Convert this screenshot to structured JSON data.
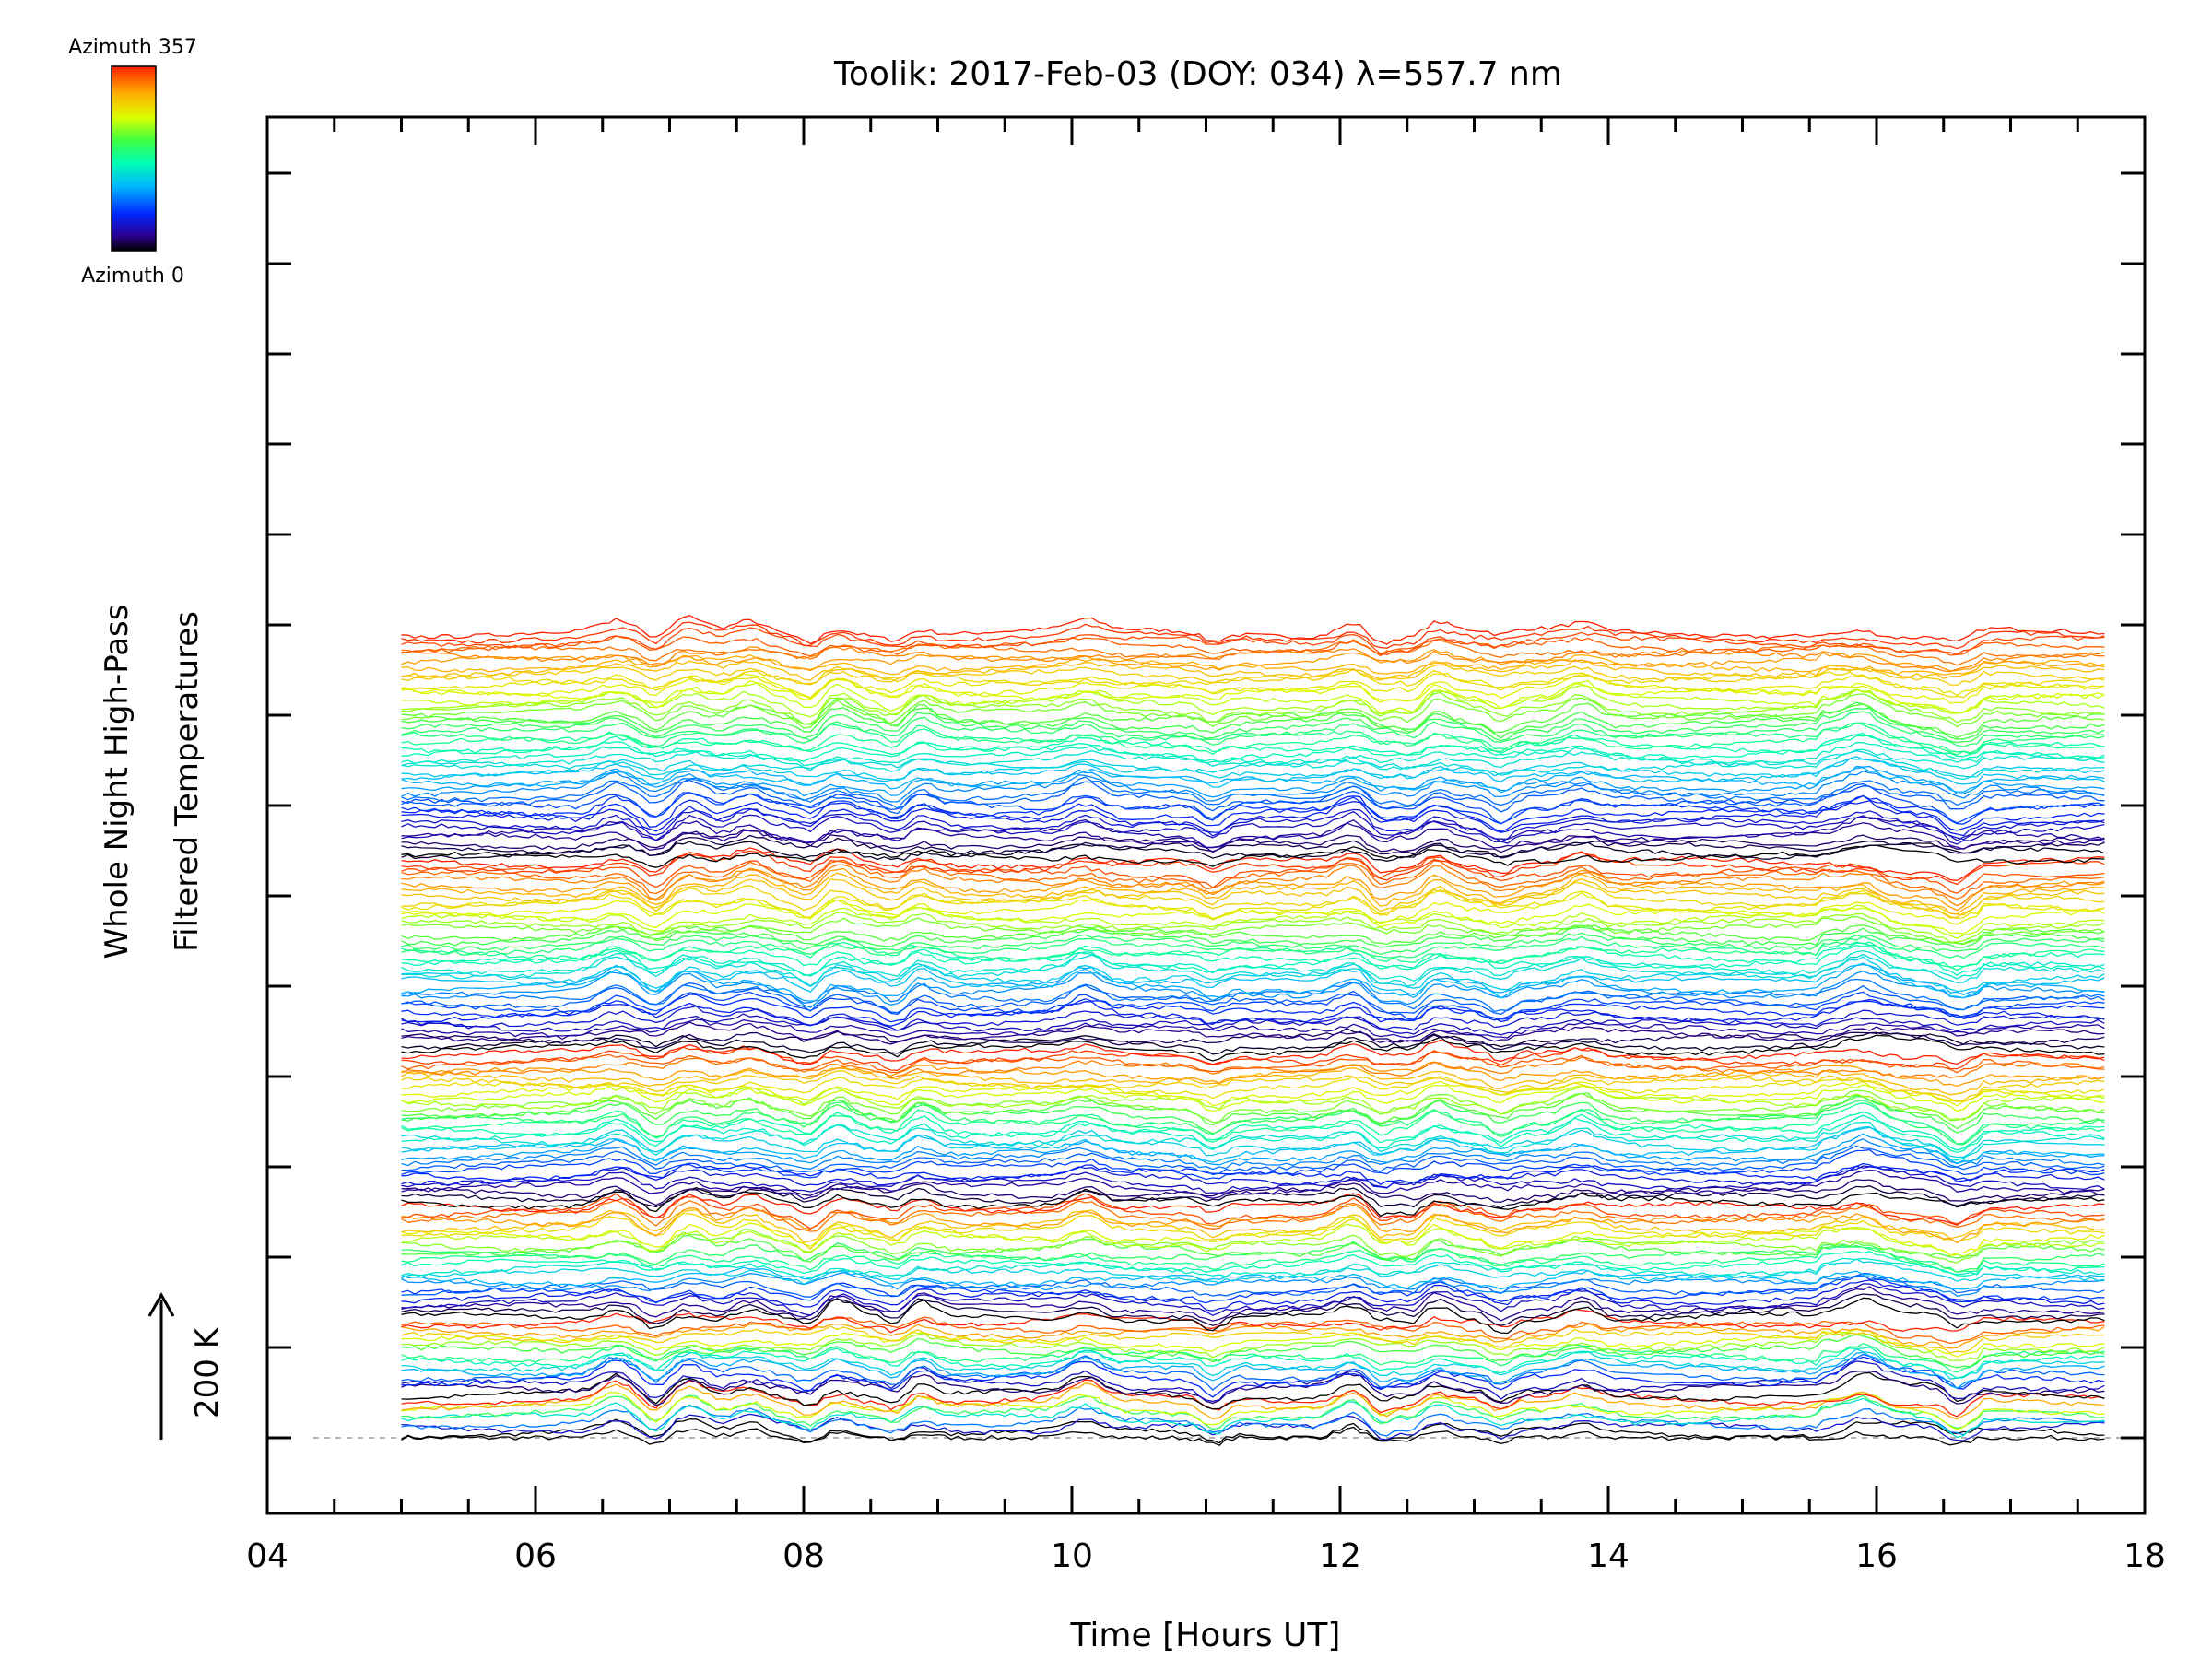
{
  "chart_data": {
    "type": "line",
    "title": "Toolik: 2017-Feb-03 (DOY: 034) λ=557.7 nm",
    "xlabel": "Time [Hours UT]",
    "ylabel_line1": "Whole Night High-Pass",
    "ylabel_line2": "Filtered Temperatures",
    "xlim": [
      4,
      18
    ],
    "x_ticks": [
      "04",
      "06",
      "08",
      "10",
      "12",
      "14",
      "16",
      "18"
    ],
    "x_tick_values": [
      4,
      6,
      8,
      10,
      12,
      14,
      16,
      18
    ],
    "data_start_hour": 5.0,
    "data_end_hour": 17.7,
    "scale_bar_label": "200 K",
    "colorbar": {
      "top_label": "Azimuth 357",
      "bottom_label": "Azimuth 0",
      "min": 0,
      "max": 357
    },
    "stacks": [
      {
        "zone": "bottom",
        "traces": 8
      },
      {
        "zone": "ring-2",
        "traces": 16
      },
      {
        "zone": "ring-3",
        "traces": 24
      },
      {
        "zone": "ring-4",
        "traces": 32
      },
      {
        "zone": "ring-5",
        "traces": 40
      },
      {
        "zone": "ring-6",
        "traces": 48
      }
    ],
    "features": {
      "peaks_hours": [
        6.6,
        7.15,
        7.6,
        8.25,
        8.85,
        10.1,
        12.1,
        12.7,
        13.8,
        15.9
      ],
      "dips_hours": [
        6.9,
        8.05,
        8.7,
        11.05,
        12.3,
        12.55,
        13.2,
        16.6
      ]
    }
  }
}
